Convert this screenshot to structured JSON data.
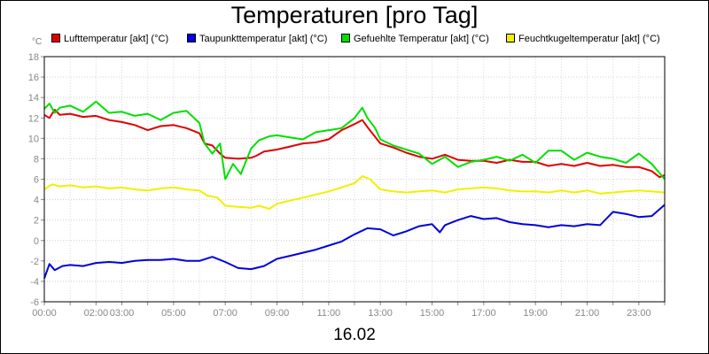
{
  "chart_data": {
    "type": "line",
    "title": "Temperaturen [pro Tag]",
    "unit_label": "°C",
    "date_label": "16.02",
    "ylim": [
      -6,
      18
    ],
    "yticks": [
      "-6",
      "-4",
      "-2",
      "0",
      "2",
      "4",
      "6",
      "8",
      "10",
      "12",
      "14",
      "16",
      "18"
    ],
    "xlim": [
      0,
      24
    ],
    "xticks": [
      {
        "label": "00:00",
        "h": 0
      },
      {
        "label": "02:00",
        "h": 2
      },
      {
        "label": "03:00",
        "h": 3
      },
      {
        "label": "05:00",
        "h": 5
      },
      {
        "label": "07:00",
        "h": 7
      },
      {
        "label": "09:00",
        "h": 9
      },
      {
        "label": "11:00",
        "h": 11
      },
      {
        "label": "13:00",
        "h": 13
      },
      {
        "label": "15:00",
        "h": 15
      },
      {
        "label": "17:00",
        "h": 17
      },
      {
        "label": "19:00",
        "h": 19
      },
      {
        "label": "21:00",
        "h": 21
      },
      {
        "label": "23:00",
        "h": 23
      }
    ],
    "grid": true,
    "legend_position": "top",
    "series": [
      {
        "name": "Lufttemperatur [akt] (°C)",
        "color": "#e00000",
        "x": [
          0,
          0.2,
          0.4,
          0.6,
          1,
          1.5,
          2,
          2.5,
          3,
          3.5,
          4,
          4.5,
          5,
          5.5,
          6,
          6.2,
          6.5,
          6.8,
          7,
          7.5,
          8,
          8.2,
          8.5,
          9,
          9.5,
          10,
          10.5,
          11,
          11.5,
          12,
          12.3,
          12.5,
          13,
          13.5,
          14,
          14.5,
          15,
          15.5,
          16,
          16.5,
          17,
          17.5,
          18,
          18.5,
          19,
          19.5,
          20,
          20.5,
          21,
          21.5,
          22,
          22.5,
          23,
          23.5,
          23.8,
          24
        ],
        "y": [
          12.3,
          12.0,
          12.8,
          12.3,
          12.4,
          12.1,
          12.2,
          11.8,
          11.6,
          11.3,
          10.8,
          11.2,
          11.3,
          11.0,
          10.5,
          9.5,
          9.3,
          8.5,
          8.1,
          8.0,
          8.1,
          8.3,
          8.7,
          8.9,
          9.2,
          9.5,
          9.6,
          9.9,
          10.8,
          11.4,
          11.8,
          11.1,
          9.5,
          9.1,
          8.6,
          8.2,
          8.0,
          8.4,
          7.9,
          7.8,
          7.8,
          7.6,
          7.9,
          7.7,
          7.7,
          7.3,
          7.5,
          7.3,
          7.6,
          7.3,
          7.4,
          7.2,
          7.2,
          6.8,
          6.2,
          6.4
        ]
      },
      {
        "name": "Taupunkttemperatur [akt] (°C)",
        "color": "#0000e0",
        "x": [
          0,
          0.2,
          0.4,
          0.7,
          1,
          1.5,
          2,
          2.5,
          3,
          3.5,
          4,
          4.5,
          5,
          5.5,
          6,
          6.5,
          7,
          7.5,
          8,
          8.5,
          9,
          9.5,
          10,
          10.5,
          11,
          11.5,
          12,
          12.5,
          13,
          13.5,
          14,
          14.5,
          15,
          15.3,
          15.5,
          16,
          16.5,
          17,
          17.5,
          18,
          18.5,
          19,
          19.5,
          20,
          20.5,
          21,
          21.5,
          22,
          22.5,
          23,
          23.5,
          24
        ],
        "y": [
          -3.7,
          -2.3,
          -2.9,
          -2.5,
          -2.4,
          -2.5,
          -2.2,
          -2.1,
          -2.2,
          -2.0,
          -1.9,
          -1.9,
          -1.8,
          -2.0,
          -2.0,
          -1.6,
          -2.1,
          -2.7,
          -2.8,
          -2.5,
          -1.8,
          -1.5,
          -1.2,
          -0.9,
          -0.5,
          -0.1,
          0.6,
          1.2,
          1.1,
          0.5,
          0.9,
          1.4,
          1.6,
          0.8,
          1.5,
          2.0,
          2.4,
          2.1,
          2.2,
          1.8,
          1.6,
          1.5,
          1.3,
          1.5,
          1.4,
          1.6,
          1.5,
          2.8,
          2.6,
          2.3,
          2.4,
          3.5
        ]
      },
      {
        "name": "Gefuehlte Temperatur [akt] (°C)",
        "color": "#00e000",
        "x": [
          0,
          0.2,
          0.4,
          0.6,
          1,
          1.5,
          2,
          2.5,
          3,
          3.5,
          4,
          4.5,
          5,
          5.5,
          6,
          6.2,
          6.5,
          6.8,
          7,
          7.3,
          7.6,
          8,
          8.3,
          8.7,
          9,
          9.5,
          10,
          10.5,
          11,
          11.5,
          12,
          12.3,
          12.5,
          12.8,
          13,
          13.5,
          14,
          14.5,
          15,
          15.5,
          16,
          16.5,
          17,
          17.5,
          18,
          18.5,
          19,
          19.5,
          20,
          20.5,
          21,
          21.5,
          22,
          22.5,
          23,
          23.5,
          23.8,
          24
        ],
        "y": [
          12.9,
          13.4,
          12.5,
          13.0,
          13.2,
          12.6,
          13.6,
          12.5,
          12.6,
          12.2,
          12.4,
          11.8,
          12.5,
          12.7,
          11.5,
          9.5,
          8.5,
          9.5,
          6.0,
          7.5,
          6.5,
          9.0,
          9.8,
          10.2,
          10.3,
          10.1,
          9.9,
          10.6,
          10.8,
          11.0,
          12.0,
          13.0,
          12.0,
          11.0,
          9.9,
          9.3,
          8.9,
          8.5,
          7.5,
          8.2,
          7.2,
          7.7,
          7.9,
          8.2,
          7.8,
          8.4,
          7.6,
          8.8,
          8.8,
          7.9,
          8.6,
          8.2,
          8.0,
          7.6,
          8.5,
          7.5,
          6.6,
          6.0
        ]
      },
      {
        "name": "Feuchtkugeltemperatur [akt] (°C)",
        "color": "#f0f000",
        "x": [
          0,
          0.3,
          0.6,
          1,
          1.5,
          2,
          2.5,
          3,
          3.5,
          4,
          4.5,
          5,
          5.5,
          6,
          6.3,
          6.7,
          7,
          7.5,
          8,
          8.3,
          8.7,
          9,
          9.5,
          10,
          10.5,
          11,
          11.5,
          12,
          12.3,
          12.6,
          13,
          13.5,
          14,
          14.5,
          15,
          15.5,
          16,
          16.5,
          17,
          17.5,
          18,
          18.5,
          19,
          19.5,
          20,
          20.5,
          21,
          21.5,
          22,
          22.5,
          23,
          23.5,
          24
        ],
        "y": [
          5.0,
          5.5,
          5.3,
          5.4,
          5.2,
          5.3,
          5.1,
          5.2,
          5.0,
          4.9,
          5.1,
          5.2,
          5.0,
          4.9,
          4.4,
          4.2,
          3.4,
          3.3,
          3.2,
          3.4,
          3.1,
          3.6,
          3.9,
          4.2,
          4.5,
          4.8,
          5.2,
          5.6,
          6.3,
          6.0,
          5.0,
          4.8,
          4.7,
          4.8,
          4.9,
          4.7,
          5.0,
          5.1,
          5.2,
          5.1,
          4.9,
          4.8,
          4.8,
          4.7,
          4.9,
          4.7,
          4.9,
          4.6,
          4.7,
          4.8,
          4.9,
          4.8,
          4.7
        ]
      }
    ]
  }
}
